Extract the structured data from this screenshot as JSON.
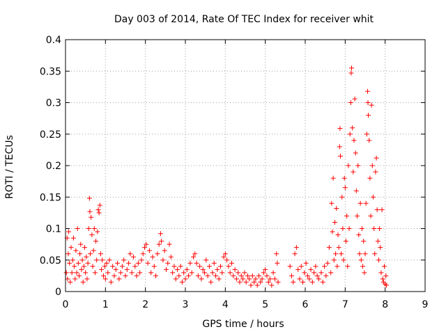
{
  "chart_data": {
    "type": "scatter",
    "title": "Day 003 of 2014, Rate Of TEC Index for receiver whit",
    "xlabel": "GPS time / hours",
    "ylabel": "ROTI / TECUs",
    "xlim": [
      0,
      9
    ],
    "ylim": [
      0,
      0.4
    ],
    "xticks": [
      0,
      1,
      2,
      3,
      4,
      5,
      6,
      7,
      8,
      9
    ],
    "xtick_labels": [
      "0",
      "1",
      "2",
      "3",
      "4",
      "5",
      "6",
      "7",
      "8",
      "9"
    ],
    "yticks": [
      0,
      0.05,
      0.1,
      0.15,
      0.2,
      0.25,
      0.3,
      0.35,
      0.4
    ],
    "ytick_labels": [
      "0",
      "0.05",
      "0.1",
      "0.15",
      "0.2",
      "0.25",
      "0.3",
      "0.35",
      "0.4"
    ],
    "grid": true,
    "marker": "plus",
    "series": [
      {
        "name": "ROTI",
        "color": "#ff0000",
        "points": [
          [
            0.02,
            0.03
          ],
          [
            0.04,
            0.085
          ],
          [
            0.05,
            0.02
          ],
          [
            0.07,
            0.06
          ],
          [
            0.08,
            0.095
          ],
          [
            0.1,
            0.045
          ],
          [
            0.12,
            0.015
          ],
          [
            0.14,
            0.07
          ],
          [
            0.16,
            0.03
          ],
          [
            0.18,
            0.05
          ],
          [
            0.2,
            0.085
          ],
          [
            0.22,
            0.04
          ],
          [
            0.24,
            0.02
          ],
          [
            0.26,
            0.065
          ],
          [
            0.28,
            0.03
          ],
          [
            0.3,
            0.1
          ],
          [
            0.32,
            0.045
          ],
          [
            0.34,
            0.025
          ],
          [
            0.36,
            0.06
          ],
          [
            0.38,
            0.075
          ],
          [
            0.4,
            0.035
          ],
          [
            0.42,
            0.05
          ],
          [
            0.44,
            0.015
          ],
          [
            0.46,
            0.04
          ],
          [
            0.48,
            0.07
          ],
          [
            0.5,
            0.03
          ],
          [
            0.52,
            0.055
          ],
          [
            0.54,
            0.02
          ],
          [
            0.56,
            0.045
          ],
          [
            0.58,
            0.1
          ],
          [
            0.6,
            0.148
          ],
          [
            0.61,
            0.127
          ],
          [
            0.62,
            0.06
          ],
          [
            0.64,
            0.118
          ],
          [
            0.66,
            0.09
          ],
          [
            0.68,
            0.04
          ],
          [
            0.7,
            0.065
          ],
          [
            0.72,
            0.1
          ],
          [
            0.74,
            0.03
          ],
          [
            0.76,
            0.08
          ],
          [
            0.78,
            0.05
          ],
          [
            0.8,
            0.095
          ],
          [
            0.82,
            0.13
          ],
          [
            0.84,
            0.125
          ],
          [
            0.86,
            0.137
          ],
          [
            0.88,
            0.06
          ],
          [
            0.9,
            0.035
          ],
          [
            0.92,
            0.05
          ],
          [
            0.95,
            0.025
          ],
          [
            0.98,
            0.04
          ],
          [
            1.0,
            0.02
          ],
          [
            1.03,
            0.045
          ],
          [
            1.06,
            0.03
          ],
          [
            1.1,
            0.05
          ],
          [
            1.14,
            0.015
          ],
          [
            1.18,
            0.04
          ],
          [
            1.22,
            0.025
          ],
          [
            1.26,
            0.035
          ],
          [
            1.3,
            0.045
          ],
          [
            1.34,
            0.02
          ],
          [
            1.38,
            0.03
          ],
          [
            1.42,
            0.04
          ],
          [
            1.46,
            0.05
          ],
          [
            1.5,
            0.025
          ],
          [
            1.54,
            0.035
          ],
          [
            1.58,
            0.045
          ],
          [
            1.62,
            0.06
          ],
          [
            1.66,
            0.03
          ],
          [
            1.7,
            0.055
          ],
          [
            1.74,
            0.04
          ],
          [
            1.78,
            0.025
          ],
          [
            1.82,
            0.045
          ],
          [
            1.86,
            0.03
          ],
          [
            1.9,
            0.05
          ],
          [
            1.94,
            0.06
          ],
          [
            1.98,
            0.07
          ],
          [
            2.02,
            0.075
          ],
          [
            2.06,
            0.045
          ],
          [
            2.1,
            0.065
          ],
          [
            2.14,
            0.03
          ],
          [
            2.18,
            0.055
          ],
          [
            2.22,
            0.04
          ],
          [
            2.26,
            0.025
          ],
          [
            2.3,
            0.06
          ],
          [
            2.34,
            0.075
          ],
          [
            2.38,
            0.092
          ],
          [
            2.4,
            0.08
          ],
          [
            2.44,
            0.05
          ],
          [
            2.48,
            0.065
          ],
          [
            2.52,
            0.035
          ],
          [
            2.56,
            0.045
          ],
          [
            2.6,
            0.075
          ],
          [
            2.64,
            0.055
          ],
          [
            2.68,
            0.03
          ],
          [
            2.72,
            0.04
          ],
          [
            2.76,
            0.02
          ],
          [
            2.8,
            0.035
          ],
          [
            2.84,
            0.025
          ],
          [
            2.88,
            0.04
          ],
          [
            2.92,
            0.015
          ],
          [
            2.96,
            0.03
          ],
          [
            3.0,
            0.02
          ],
          [
            3.04,
            0.035
          ],
          [
            3.08,
            0.025
          ],
          [
            3.12,
            0.045
          ],
          [
            3.16,
            0.03
          ],
          [
            3.2,
            0.055
          ],
          [
            3.24,
            0.06
          ],
          [
            3.28,
            0.045
          ],
          [
            3.32,
            0.025
          ],
          [
            3.36,
            0.04
          ],
          [
            3.4,
            0.02
          ],
          [
            3.44,
            0.035
          ],
          [
            3.48,
            0.03
          ],
          [
            3.52,
            0.05
          ],
          [
            3.56,
            0.025
          ],
          [
            3.6,
            0.04
          ],
          [
            3.64,
            0.015
          ],
          [
            3.68,
            0.03
          ],
          [
            3.72,
            0.045
          ],
          [
            3.76,
            0.025
          ],
          [
            3.8,
            0.035
          ],
          [
            3.84,
            0.02
          ],
          [
            3.88,
            0.04
          ],
          [
            3.92,
            0.03
          ],
          [
            3.96,
            0.055
          ],
          [
            4.0,
            0.06
          ],
          [
            4.04,
            0.05
          ],
          [
            4.08,
            0.04
          ],
          [
            4.12,
            0.03
          ],
          [
            4.16,
            0.045
          ],
          [
            4.2,
            0.025
          ],
          [
            4.24,
            0.035
          ],
          [
            4.28,
            0.02
          ],
          [
            4.32,
            0.03
          ],
          [
            4.36,
            0.015
          ],
          [
            4.4,
            0.025
          ],
          [
            4.44,
            0.02
          ],
          [
            4.48,
            0.03
          ],
          [
            4.52,
            0.015
          ],
          [
            4.56,
            0.025
          ],
          [
            4.6,
            0.02
          ],
          [
            4.64,
            0.01
          ],
          [
            4.68,
            0.025
          ],
          [
            4.72,
            0.015
          ],
          [
            4.76,
            0.02
          ],
          [
            4.8,
            0.01
          ],
          [
            4.84,
            0.025
          ],
          [
            4.88,
            0.015
          ],
          [
            4.92,
            0.02
          ],
          [
            4.96,
            0.03
          ],
          [
            5.0,
            0.035
          ],
          [
            5.04,
            0.025
          ],
          [
            5.08,
            0.015
          ],
          [
            5.12,
            0.02
          ],
          [
            5.16,
            0.01
          ],
          [
            5.2,
            0.03
          ],
          [
            5.24,
            0.02
          ],
          [
            5.28,
            0.06
          ],
          [
            5.3,
            0.045
          ],
          [
            5.32,
            0.015
          ],
          [
            5.62,
            0.04
          ],
          [
            5.66,
            0.025
          ],
          [
            5.7,
            0.015
          ],
          [
            5.74,
            0.06
          ],
          [
            5.78,
            0.07
          ],
          [
            5.82,
            0.035
          ],
          [
            5.86,
            0.02
          ],
          [
            5.9,
            0.04
          ],
          [
            5.94,
            0.015
          ],
          [
            5.98,
            0.03
          ],
          [
            6.02,
            0.045
          ],
          [
            6.06,
            0.025
          ],
          [
            6.1,
            0.02
          ],
          [
            6.14,
            0.035
          ],
          [
            6.18,
            0.015
          ],
          [
            6.22,
            0.03
          ],
          [
            6.26,
            0.04
          ],
          [
            6.3,
            0.025
          ],
          [
            6.34,
            0.02
          ],
          [
            6.4,
            0.03
          ],
          [
            6.44,
            0.015
          ],
          [
            6.48,
            0.04
          ],
          [
            6.52,
            0.025
          ],
          [
            6.56,
            0.045
          ],
          [
            6.6,
            0.07
          ],
          [
            6.64,
            0.03
          ],
          [
            6.66,
            0.14
          ],
          [
            6.68,
            0.095
          ],
          [
            6.7,
            0.18
          ],
          [
            6.72,
            0.05
          ],
          [
            6.74,
            0.11
          ],
          [
            6.76,
            0.06
          ],
          [
            6.78,
            0.132
          ],
          [
            6.8,
            0.04
          ],
          [
            6.82,
            0.09
          ],
          [
            6.84,
            0.07
          ],
          [
            6.86,
            0.23
          ],
          [
            6.87,
            0.259
          ],
          [
            6.88,
            0.215
          ],
          [
            6.9,
            0.06
          ],
          [
            6.92,
            0.15
          ],
          [
            6.94,
            0.1
          ],
          [
            6.96,
            0.05
          ],
          [
            6.98,
            0.18
          ],
          [
            7.0,
            0.165
          ],
          [
            7.02,
            0.08
          ],
          [
            7.04,
            0.12
          ],
          [
            7.06,
            0.04
          ],
          [
            7.08,
            0.2
          ],
          [
            7.1,
            0.1
          ],
          [
            7.12,
            0.25
          ],
          [
            7.14,
            0.3
          ],
          [
            7.15,
            0.347
          ],
          [
            7.16,
            0.355
          ],
          [
            7.18,
            0.26
          ],
          [
            7.2,
            0.19
          ],
          [
            7.22,
            0.24
          ],
          [
            7.24,
            0.306
          ],
          [
            7.26,
            0.22
          ],
          [
            7.28,
            0.16
          ],
          [
            7.3,
            0.12
          ],
          [
            7.32,
            0.2
          ],
          [
            7.34,
            0.09
          ],
          [
            7.36,
            0.06
          ],
          [
            7.38,
            0.14
          ],
          [
            7.4,
            0.05
          ],
          [
            7.42,
            0.1
          ],
          [
            7.44,
            0.04
          ],
          [
            7.46,
            0.08
          ],
          [
            7.48,
            0.03
          ],
          [
            7.5,
            0.06
          ],
          [
            7.52,
            0.14
          ],
          [
            7.54,
            0.25
          ],
          [
            7.56,
            0.318
          ],
          [
            7.57,
            0.3
          ],
          [
            7.58,
            0.28
          ],
          [
            7.6,
            0.24
          ],
          [
            7.62,
            0.18
          ],
          [
            7.64,
            0.12
          ],
          [
            7.66,
            0.296
          ],
          [
            7.68,
            0.2
          ],
          [
            7.7,
            0.15
          ],
          [
            7.72,
            0.1
          ],
          [
            7.74,
            0.06
          ],
          [
            7.76,
            0.19
          ],
          [
            7.78,
            0.212
          ],
          [
            7.8,
            0.13
          ],
          [
            7.82,
            0.08
          ],
          [
            7.84,
            0.05
          ],
          [
            7.86,
            0.1
          ],
          [
            7.88,
            0.07
          ],
          [
            7.9,
            0.03
          ],
          [
            7.92,
            0.13
          ],
          [
            7.94,
            0.02
          ],
          [
            7.96,
            0.015
          ],
          [
            7.98,
            0.04
          ],
          [
            8.0,
            0.012
          ],
          [
            8.02,
            0.025
          ],
          [
            8.03,
            0.01
          ]
        ]
      }
    ]
  }
}
